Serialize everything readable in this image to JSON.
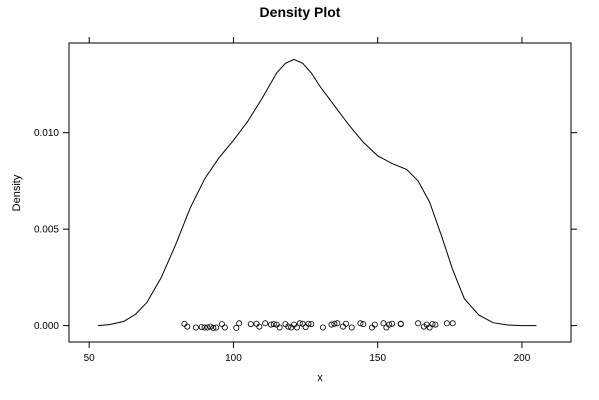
{
  "chart_data": {
    "type": "line",
    "title": "Density Plot",
    "xlabel": "x",
    "ylabel": "Density",
    "xlim": [
      43,
      217
    ],
    "ylim": [
      -0.00085,
      0.01465
    ],
    "x_ticks": [
      50,
      100,
      150,
      200
    ],
    "x_tick_labels": [
      "50",
      "100",
      "150",
      "200"
    ],
    "y_ticks": [
      0.0,
      0.005,
      0.01
    ],
    "y_tick_labels": [
      "0.000",
      "0.005",
      "0.010"
    ],
    "grid": false,
    "legend": "none",
    "series": [
      {
        "kind": "density-line",
        "x": [
          53,
          57,
          62,
          66,
          70,
          75,
          80,
          85,
          90,
          95,
          100,
          105,
          110,
          115,
          118,
          121,
          124,
          127,
          130,
          135,
          140,
          145,
          150,
          155,
          160,
          164,
          168,
          172,
          176,
          180,
          185,
          190,
          195,
          200,
          205
        ],
        "y": [
          0.0,
          5e-05,
          0.00022,
          0.00058,
          0.0012,
          0.0025,
          0.0042,
          0.0061,
          0.0076,
          0.0087,
          0.0096,
          0.0106,
          0.0118,
          0.0131,
          0.0136,
          0.0138,
          0.0136,
          0.0131,
          0.0124,
          0.0114,
          0.0104,
          0.0095,
          0.0088,
          0.0084,
          0.0081,
          0.0075,
          0.0064,
          0.0047,
          0.0029,
          0.0014,
          0.00055,
          0.00015,
          3e-05,
          0.0,
          0.0
        ]
      },
      {
        "kind": "rug-points",
        "x": [
          83,
          84,
          87,
          89,
          90,
          91,
          92,
          93,
          94,
          96,
          97,
          101,
          102,
          106,
          108,
          109,
          111,
          113,
          114,
          115,
          116,
          118,
          119,
          120,
          121,
          122,
          123,
          124,
          125,
          126,
          127,
          131,
          134,
          135,
          136,
          138,
          139,
          141,
          144,
          145,
          148,
          149,
          152,
          153,
          154,
          155,
          158,
          158,
          164,
          166,
          167,
          168,
          169,
          170,
          174,
          176
        ],
        "y": [
          0.0001,
          -5e-05,
          -0.0001,
          -8e-05,
          -0.0001,
          -0.0001,
          -5e-05,
          -0.00012,
          -0.0001,
          8e-05,
          -0.0001,
          -0.00012,
          0.00012,
          8e-05,
          0.0001,
          -5e-05,
          0.00012,
          5e-05,
          8e-05,
          5e-05,
          -0.0001,
          8e-05,
          -5e-05,
          -0.0001,
          5e-05,
          -0.0001,
          0.00012,
          0.0001,
          -8e-05,
          0.0001,
          8e-05,
          -0.0001,
          5e-05,
          0.0001,
          0.00012,
          -5e-05,
          0.0001,
          -0.0001,
          0.00012,
          8e-05,
          -0.0001,
          5e-05,
          0.00012,
          -0.0001,
          5e-05,
          0.0001,
          8e-05,
          0.0001,
          0.00012,
          -5e-05,
          5e-05,
          -0.0001,
          8e-05,
          5e-05,
          0.00012,
          0.00012
        ]
      }
    ]
  }
}
